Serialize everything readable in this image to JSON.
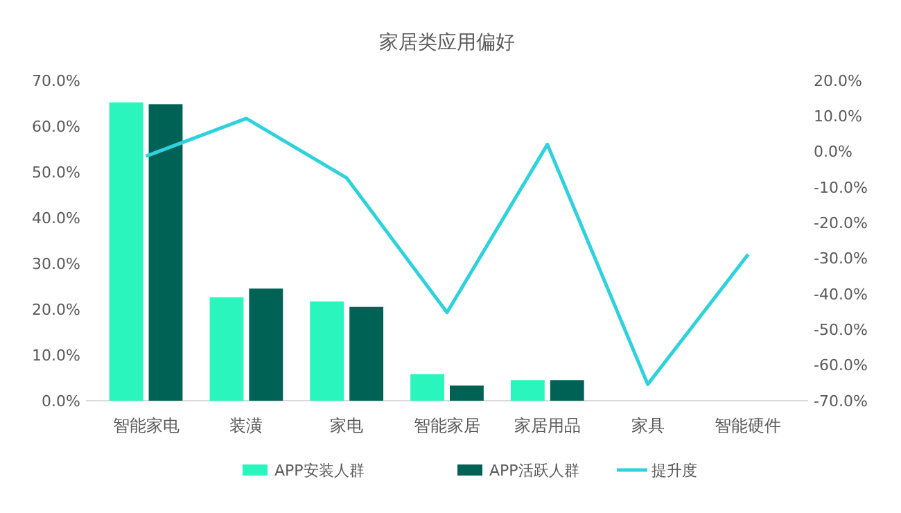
{
  "chart_data": {
    "type": "bar",
    "title": "家居类应用偏好",
    "categories": [
      "智能家电",
      "装潢",
      "家电",
      "智能家居",
      "家居用品",
      "家具",
      "智能硬件"
    ],
    "series": [
      {
        "name": "APP安装人群",
        "color": "#2af5bc",
        "values": [
          65.2,
          22.6,
          21.7,
          5.8,
          4.5,
          null,
          null
        ]
      },
      {
        "name": "APP活跃人群",
        "color": "#006155",
        "values": [
          64.8,
          24.5,
          20.5,
          3.3,
          4.5,
          null,
          null
        ]
      },
      {
        "name": "提升度",
        "type": "line",
        "axis": "y2",
        "color": "#2ed1dc",
        "values": [
          -1.3,
          9.3,
          -7.4,
          -45.2,
          2,
          -65.4,
          -28.9
        ]
      }
    ],
    "ylim": [
      0,
      70
    ],
    "yticks": [
      {
        "value": 0,
        "label": "0.0%"
      },
      {
        "value": 10,
        "label": "10.0%"
      },
      {
        "value": 20,
        "label": "20.0%"
      },
      {
        "value": 30,
        "label": "30.0%"
      },
      {
        "value": 40,
        "label": "40.0%"
      },
      {
        "value": 50,
        "label": "50.0%"
      },
      {
        "value": 60,
        "label": "60.0%"
      },
      {
        "value": 70,
        "label": "70.0%"
      }
    ],
    "y2lim": [
      -70,
      20
    ],
    "y2ticks": [
      {
        "value": -70,
        "label": "-70.0%"
      },
      {
        "value": -60,
        "label": "-60.0%"
      },
      {
        "value": -50,
        "label": "-50.0%"
      },
      {
        "value": -40,
        "label": "-40.0%"
      },
      {
        "value": -30,
        "label": "-30.0%"
      },
      {
        "value": -20,
        "label": "-20.0%"
      },
      {
        "value": -10,
        "label": "-10.0%"
      },
      {
        "value": 0,
        "label": "0.0%"
      },
      {
        "value": 10,
        "label": "10.0%"
      },
      {
        "value": 20,
        "label": "20.0%"
      }
    ],
    "legend": "bottom",
    "grid": false,
    "marker": "none",
    "line_style": "solid"
  }
}
